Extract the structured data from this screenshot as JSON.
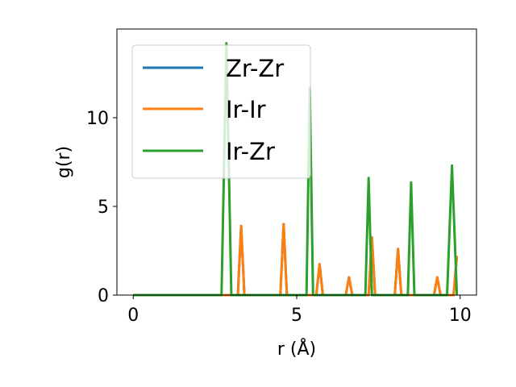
{
  "chart_data": {
    "type": "line",
    "title": "",
    "xlabel": "r (Å)",
    "ylabel": "g(r)",
    "xlim": [
      -0.5,
      10.5
    ],
    "ylim": [
      0,
      15
    ],
    "xticks": [
      0,
      5,
      10
    ],
    "yticks": [
      0,
      5,
      10
    ],
    "grid": false,
    "legend_placement": "top-left",
    "series": [
      {
        "name": "Zr-Zr",
        "color": "#1f77b4",
        "x": [
          0,
          3.2,
          3.3,
          3.4,
          4.5,
          4.6,
          4.7,
          5.6,
          5.7,
          5.8,
          6.5,
          6.6,
          6.7,
          7.2,
          7.3,
          7.4,
          8.0,
          8.1,
          8.2,
          9.2,
          9.3,
          9.4,
          9.8,
          9.9
        ],
        "y": [
          0,
          0,
          3.9,
          0,
          0,
          4.0,
          0,
          0,
          1.75,
          0,
          0,
          1.0,
          0,
          0,
          3.25,
          0,
          0,
          2.6,
          0,
          0,
          1.0,
          0,
          0,
          2.2
        ]
      },
      {
        "name": "Ir-Ir",
        "color": "#ff7f0e",
        "x": [
          0,
          3.2,
          3.3,
          3.4,
          4.5,
          4.6,
          4.7,
          5.6,
          5.7,
          5.8,
          6.5,
          6.6,
          6.7,
          7.2,
          7.3,
          7.4,
          8.0,
          8.1,
          8.2,
          9.2,
          9.3,
          9.4,
          9.8,
          9.9
        ],
        "y": [
          0,
          0,
          3.9,
          0,
          0,
          4.0,
          0,
          0,
          1.75,
          0,
          0,
          1.0,
          0,
          0,
          3.25,
          0,
          0,
          2.6,
          0,
          0,
          1.0,
          0,
          0,
          2.2
        ]
      },
      {
        "name": "Ir-Zr",
        "color": "#2ca02c",
        "x": [
          0,
          2.7,
          2.85,
          3.0,
          5.3,
          5.4,
          5.5,
          7.1,
          7.2,
          7.3,
          8.4,
          8.5,
          8.6,
          9.6,
          9.75,
          9.9
        ],
        "y": [
          0,
          0,
          14.2,
          0,
          0,
          11.7,
          0,
          0,
          6.6,
          0,
          0,
          6.35,
          0,
          0,
          7.3,
          0
        ]
      }
    ]
  }
}
